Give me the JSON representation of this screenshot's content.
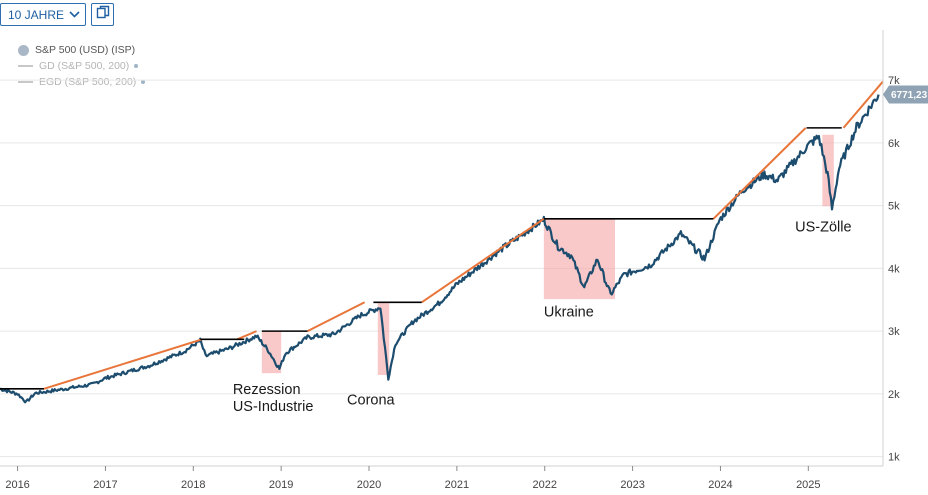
{
  "toolbar": {
    "period_label": "10 JAHRE",
    "period_icon": "chevron-down-icon",
    "copy_icon": "copy-icon"
  },
  "legend": {
    "series_main": "S&P 500 (USD) (ISP)",
    "series_gd": "GD (S&P 500, 200)",
    "series_egd": "EGD (S&P 500, 200)"
  },
  "price_label": "6771,23",
  "colors": {
    "price_line": "#1d4d6e",
    "trend_line": "#e8753a",
    "plateau_line": "#000000",
    "drawdown_box": "#f5a5a5",
    "price_badge": "#8fa3b5"
  },
  "chart_data": {
    "type": "line",
    "title": "",
    "xlabel": "",
    "ylabel": "",
    "x_ticks": [
      "2016",
      "2017",
      "2018",
      "2019",
      "2020",
      "2021",
      "2022",
      "2023",
      "2024",
      "2025"
    ],
    "y_ticks": [
      "1k",
      "2k",
      "3k",
      "4k",
      "5k",
      "6k",
      "7k"
    ],
    "x_range": [
      2015.8,
      2025.85
    ],
    "y_range": [
      850,
      7800
    ],
    "series": [
      {
        "name": "S&P 500 (USD) (ISP)",
        "points": [
          [
            2015.8,
            2080
          ],
          [
            2016.0,
            2000
          ],
          [
            2016.1,
            1870
          ],
          [
            2016.2,
            2010
          ],
          [
            2016.45,
            2060
          ],
          [
            2016.85,
            2150
          ],
          [
            2017.0,
            2250
          ],
          [
            2017.5,
            2450
          ],
          [
            2017.9,
            2680
          ],
          [
            2018.08,
            2850
          ],
          [
            2018.14,
            2600
          ],
          [
            2018.4,
            2720
          ],
          [
            2018.72,
            2920
          ],
          [
            2018.85,
            2700
          ],
          [
            2018.98,
            2400
          ],
          [
            2019.05,
            2650
          ],
          [
            2019.3,
            2900
          ],
          [
            2019.6,
            2950
          ],
          [
            2019.9,
            3250
          ],
          [
            2020.13,
            3380
          ],
          [
            2020.22,
            2250
          ],
          [
            2020.3,
            2800
          ],
          [
            2020.5,
            3150
          ],
          [
            2020.8,
            3450
          ],
          [
            2021.0,
            3750
          ],
          [
            2021.5,
            4300
          ],
          [
            2021.99,
            4780
          ],
          [
            2022.15,
            4350
          ],
          [
            2022.3,
            4200
          ],
          [
            2022.45,
            3700
          ],
          [
            2022.6,
            4150
          ],
          [
            2022.75,
            3580
          ],
          [
            2022.9,
            3900
          ],
          [
            2023.2,
            4050
          ],
          [
            2023.55,
            4550
          ],
          [
            2023.82,
            4150
          ],
          [
            2023.99,
            4770
          ],
          [
            2024.25,
            5250
          ],
          [
            2024.5,
            5500
          ],
          [
            2024.65,
            5400
          ],
          [
            2024.99,
            5950
          ],
          [
            2025.12,
            6100
          ],
          [
            2025.22,
            5500
          ],
          [
            2025.27,
            4950
          ],
          [
            2025.35,
            5600
          ],
          [
            2025.55,
            6250
          ],
          [
            2025.8,
            6771
          ]
        ]
      }
    ],
    "trend_lines": [
      {
        "label": "uptrend-2016-2018",
        "points": [
          [
            2016.3,
            2080
          ],
          [
            2018.1,
            2870
          ]
        ]
      },
      {
        "label": "uptrend-2018",
        "points": [
          [
            2018.5,
            2870
          ],
          [
            2018.72,
            3000
          ]
        ]
      },
      {
        "label": "uptrend-2019-2020",
        "points": [
          [
            2019.3,
            3000
          ],
          [
            2019.95,
            3460
          ]
        ]
      },
      {
        "label": "uptrend-2020-2022",
        "points": [
          [
            2020.6,
            3460
          ],
          [
            2021.99,
            4790
          ]
        ]
      },
      {
        "label": "uptrend-2024-2025",
        "points": [
          [
            2023.92,
            4790
          ],
          [
            2024.97,
            6240
          ]
        ]
      },
      {
        "label": "uptrend-2025",
        "points": [
          [
            2025.4,
            6240
          ],
          [
            2025.85,
            6980
          ]
        ]
      }
    ],
    "plateau_lines": [
      {
        "from": 2015.8,
        "to": 2016.3,
        "value": 2080
      },
      {
        "from": 2018.08,
        "to": 2018.58,
        "value": 2870
      },
      {
        "from": 2018.78,
        "to": 2019.3,
        "value": 3000
      },
      {
        "from": 2020.05,
        "to": 2020.6,
        "value": 3460
      },
      {
        "from": 2021.99,
        "to": 2023.92,
        "value": 4790
      },
      {
        "from": 2024.98,
        "to": 2025.38,
        "value": 6240
      }
    ],
    "drawdown_boxes": [
      {
        "label": "Rezession\nUS-Industrie",
        "x": [
          2018.78,
          2019.0
        ],
        "y": [
          2330,
          3000
        ]
      },
      {
        "label": "Corona",
        "x": [
          2020.1,
          2020.23
        ],
        "y": [
          2300,
          3460
        ]
      },
      {
        "label": "Ukraine",
        "x": [
          2021.99,
          2022.8
        ],
        "y": [
          3510,
          4790
        ]
      },
      {
        "label": "US-Zölle",
        "x": [
          2025.16,
          2025.29
        ],
        "y": [
          4990,
          6130
        ]
      }
    ],
    "annotations": [
      {
        "text": "Rezession",
        "x": 2018.45,
        "y": 2000
      },
      {
        "text": "US-Industrie",
        "x": 2018.45,
        "y": 1730
      },
      {
        "text": "Corona",
        "x": 2019.75,
        "y": 1830
      },
      {
        "text": "Ukraine",
        "x": 2021.99,
        "y": 3230
      },
      {
        "text": "US-Zölle",
        "x": 2024.85,
        "y": 4590
      }
    ],
    "last_value": 6771.23
  }
}
